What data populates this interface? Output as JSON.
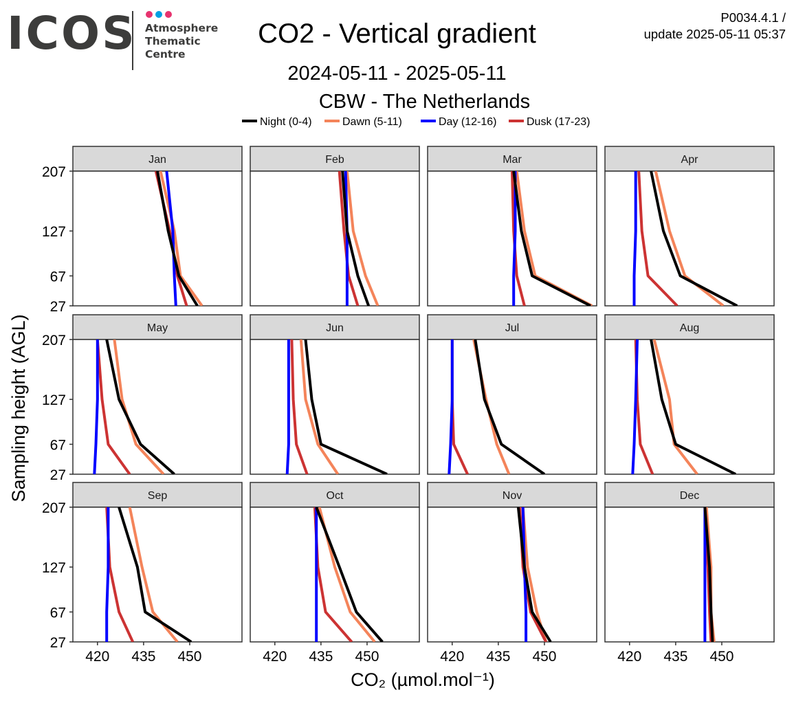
{
  "header": {
    "logo_text": "ICOS",
    "logo_sub": [
      "Atmosphere",
      "Thematic",
      "Centre"
    ],
    "logo_dot_colors": [
      "#e7336f",
      "#00a0e3",
      "#e7336f"
    ],
    "title": "CO2 - Vertical gradient",
    "version_line1": "P0034.4.1 /",
    "version_line2": "update  2025-05-11 05:37",
    "date_range": "2024-05-11 - 2025-05-11",
    "station": "CBW - The Netherlands"
  },
  "chart_data": {
    "type": "line",
    "xlabel": "CO₂ (µmol.mol⁻¹)",
    "ylabel": "Sampling height (AGL)",
    "xlim": [
      412,
      467
    ],
    "ylim": [
      27,
      207
    ],
    "x_ticks": [
      420,
      435,
      450
    ],
    "y_ticks": [
      27,
      67,
      127,
      207
    ],
    "heights": [
      27,
      67,
      127,
      207
    ],
    "legend_position": "top",
    "series": [
      {
        "key": "night",
        "name": "Night (0-4)",
        "color": "#000000"
      },
      {
        "key": "dawn",
        "name": "Dawn (5-11)",
        "color": "#f4845a"
      },
      {
        "key": "day",
        "name": "Day (12-16)",
        "color": "#0000ff"
      },
      {
        "key": "dusk",
        "name": "Dusk (17-23)",
        "color": "#cc3333"
      }
    ],
    "panels": [
      {
        "month": "Jan",
        "night": [
          452.5,
          446.5,
          443,
          439.5
        ],
        "dawn": [
          454,
          447,
          445,
          440.5
        ],
        "day": [
          445.5,
          445,
          444.5,
          442.5
        ],
        "dusk": [
          449,
          446,
          443.5,
          439
        ]
      },
      {
        "month": "Feb",
        "night": [
          450.5,
          447,
          443.5,
          442
        ],
        "dawn": [
          453.5,
          449.5,
          445.5,
          443.5
        ],
        "day": [
          443.5,
          443.5,
          443.5,
          443
        ],
        "dusk": [
          447,
          444,
          442.5,
          441
        ]
      },
      {
        "month": "Mar",
        "night": [
          465,
          446,
          442.5,
          440
        ],
        "dawn": [
          465.5,
          447,
          443.5,
          441
        ],
        "day": [
          440,
          440,
          440.5,
          440.5
        ],
        "dusk": [
          443.5,
          441,
          440,
          439.5
        ]
      },
      {
        "month": "Apr",
        "night": [
          455,
          436.5,
          431,
          427
        ],
        "dawn": [
          450.5,
          438,
          433,
          428.5
        ],
        "day": [
          421.5,
          421.5,
          422,
          422
        ],
        "dusk": [
          435.5,
          426,
          424,
          423
        ]
      },
      {
        "month": "May",
        "night": [
          445,
          434,
          427,
          423
        ],
        "dawn": [
          441.5,
          432.5,
          428,
          425.5
        ],
        "day": [
          419,
          419.5,
          420,
          420
        ],
        "dusk": [
          430.5,
          423.5,
          421.5,
          420
        ]
      },
      {
        "month": "Jun",
        "night": [
          456.5,
          435,
          432,
          430
        ],
        "dawn": [
          440.5,
          434,
          430,
          428.5
        ],
        "day": [
          424,
          424.5,
          424.5,
          424.5
        ],
        "dusk": [
          430.5,
          427,
          426,
          425.5
        ]
      },
      {
        "month": "Jul",
        "night": [
          450,
          436,
          430.5,
          427.5
        ],
        "dawn": [
          438.5,
          434.5,
          431,
          427
        ],
        "day": [
          419,
          419.5,
          420,
          420
        ],
        "dusk": [
          425,
          420.5,
          420,
          420
        ]
      },
      {
        "month": "Aug",
        "night": [
          454.5,
          435,
          430.5,
          427
        ],
        "dawn": [
          442,
          434.5,
          433,
          428
        ],
        "day": [
          421,
          421.5,
          422,
          422.5
        ],
        "dusk": [
          427.5,
          423.5,
          422.5,
          422
        ]
      },
      {
        "month": "Sep",
        "night": [
          450.5,
          435.5,
          433,
          427
        ],
        "dawn": [
          446,
          438,
          434.5,
          430.5
        ],
        "day": [
          423,
          423,
          423.5,
          423.5
        ],
        "dusk": [
          431.5,
          427,
          424,
          423
        ]
      },
      {
        "month": "Oct",
        "night": [
          455,
          446.5,
          441,
          433.5
        ],
        "dawn": [
          452.5,
          444.5,
          439.5,
          434.5
        ],
        "day": [
          433.5,
          433.5,
          433.5,
          433.5
        ],
        "dusk": [
          445,
          436.5,
          434,
          433
        ]
      },
      {
        "month": "Nov",
        "night": [
          452,
          446,
          443.5,
          441.5
        ],
        "dawn": [
          450.5,
          447.5,
          444.5,
          443
        ],
        "day": [
          444,
          444,
          443.5,
          443
        ],
        "dusk": [
          450.5,
          445.5,
          443,
          442
        ]
      },
      {
        "month": "Dec",
        "night": [
          447,
          446.5,
          446,
          444.5
        ],
        "dawn": [
          447.5,
          446.5,
          446.5,
          445
        ],
        "day": [
          444.5,
          444.5,
          444.5,
          444.5
        ],
        "dusk": [
          446.5,
          446,
          445.5,
          444.5
        ]
      }
    ]
  }
}
